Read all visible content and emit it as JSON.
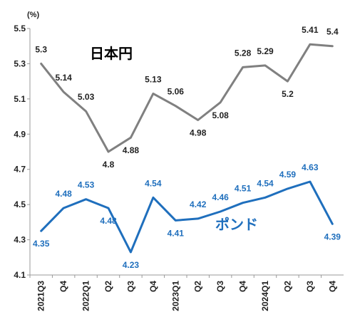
{
  "chart_data": {
    "type": "line",
    "unit_label": "(%)",
    "ylim": [
      4.1,
      5.5
    ],
    "y_ticks": [
      "5.5",
      "5.3",
      "5.1",
      "4.9",
      "4.7",
      "4.5",
      "4.3",
      "4.1"
    ],
    "categories": [
      "2021Q3",
      "Q4",
      "2022Q1",
      "Q2",
      "Q3",
      "Q4",
      "2023Q1",
      "Q2",
      "Q3",
      "Q4",
      "2024Q1",
      "Q2",
      "Q3",
      "Q4"
    ],
    "grid": false,
    "series": [
      {
        "name": "日本円",
        "color": "#808080",
        "values": [
          5.3,
          5.14,
          5.03,
          4.8,
          4.88,
          5.13,
          5.06,
          4.98,
          5.08,
          5.28,
          5.29,
          5.2,
          5.41,
          5.4
        ],
        "labels": [
          "5.3",
          "5.14",
          "5.03",
          "4.8",
          "4.88",
          "5.13",
          "5.06",
          "4.98",
          "5.08",
          "5.28",
          "5.29",
          "5.2",
          "5.41",
          "5.4"
        ]
      },
      {
        "name": "ポンド",
        "color": "#1f6fbd",
        "values": [
          4.35,
          4.48,
          4.53,
          4.48,
          4.23,
          4.54,
          4.41,
          4.42,
          4.46,
          4.51,
          4.54,
          4.59,
          4.63,
          4.39
        ],
        "labels": [
          "4.35",
          "4.48",
          "4.53",
          "4.48",
          "4.23",
          "4.54",
          "4.41",
          "4.42",
          "4.46",
          "4.51",
          "4.54",
          "4.59",
          "4.63",
          "4.39"
        ]
      }
    ],
    "label_colors": {
      "yen": "#222222",
      "pound": "#1f6fbd"
    }
  }
}
